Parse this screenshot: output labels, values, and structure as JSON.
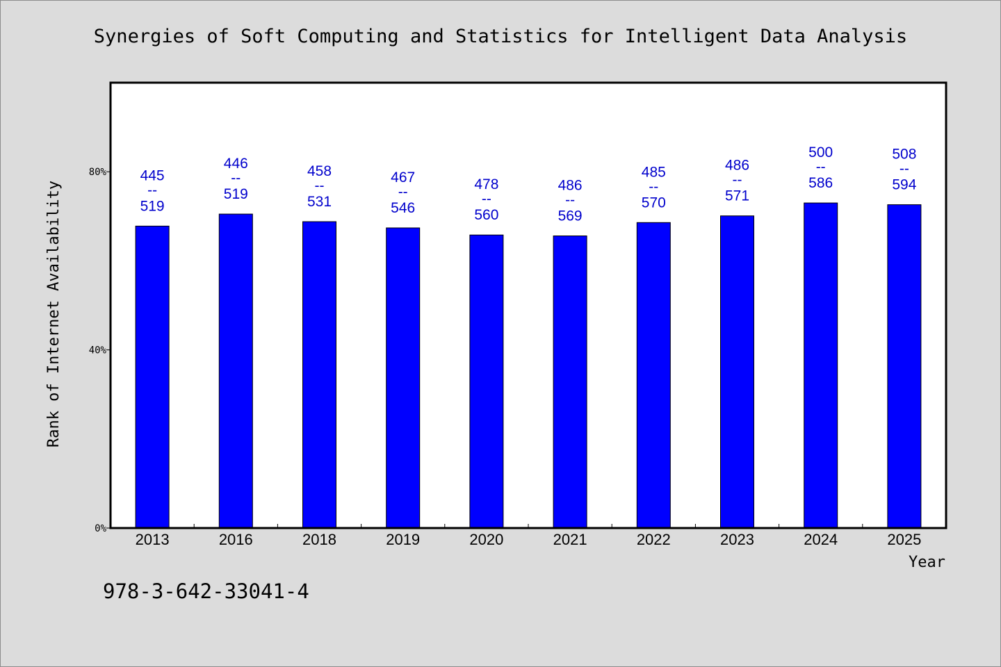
{
  "chart_data": {
    "type": "bar",
    "title": "Synergies of Soft Computing and Statistics for Intelligent Data Analysis",
    "xlabel": "Year",
    "ylabel": "Rank of Internet Availability",
    "categories": [
      "2013",
      "2016",
      "2018",
      "2019",
      "2020",
      "2021",
      "2022",
      "2023",
      "2024",
      "2025"
    ],
    "series": [
      {
        "values": [
          67.8,
          70.5,
          68.8,
          67.4,
          65.8,
          65.6,
          68.6,
          70.1,
          73.0,
          72.6
        ],
        "rank": [
          "445",
          "446",
          "458",
          "467",
          "478",
          "486",
          "485",
          "486",
          "500",
          "508"
        ],
        "total": [
          "519",
          "519",
          "531",
          "546",
          "560",
          "569",
          "570",
          "571",
          "586",
          "594"
        ]
      }
    ],
    "ylim": [
      0,
      100
    ],
    "yticks": [
      0,
      40,
      80
    ],
    "ytick_labels": [
      "0%",
      "40%",
      "80%"
    ],
    "label_separator": "--",
    "grid": false,
    "colors": {
      "bar": "#0000ff",
      "label": "#0000cc",
      "background": "#dcdcdc",
      "plot_background": "#ffffff"
    }
  },
  "footer": {
    "isbn": "978-3-642-33041-4"
  }
}
